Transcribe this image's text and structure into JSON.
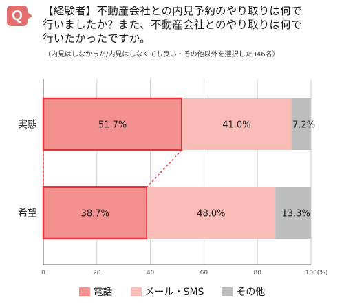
{
  "header": {
    "badge": "Q",
    "title_lines": [
      "【経験者】不動産会社との内見予約のやり取りは何で",
      "行いましたか？また、不動産会社とのやり取りは何で",
      "行いたかったですか。"
    ],
    "note": "（内見はしなかった/内見はしなくても良い・その他以外を選択した346名）"
  },
  "colors": {
    "phone": "#f2918f",
    "phone_border": "#e4343a",
    "mail": "#f8bbb5",
    "other": "#bdbdbd",
    "connector": "#e4343a",
    "badge": "#e36e6e"
  },
  "chart_data": {
    "type": "bar",
    "orientation": "horizontal",
    "stacked": true,
    "categories": [
      "実態",
      "希望"
    ],
    "series": [
      {
        "name": "電話",
        "values": [
          51.7,
          38.7
        ]
      },
      {
        "name": "メール・SMS",
        "values": [
          41.0,
          48.0
        ]
      },
      {
        "name": "その他",
        "values": [
          7.2,
          13.3
        ]
      }
    ],
    "value_labels": [
      [
        "51.7%",
        "41.0%",
        "7.2%"
      ],
      [
        "38.7%",
        "48.0%",
        "13.3%"
      ]
    ],
    "xlim": [
      0,
      100
    ],
    "xticks": [
      "0",
      "20",
      "40",
      "60",
      "80",
      "100(%)"
    ],
    "grid": "vertical",
    "legend_position": "bottom-center",
    "highlight_series": "電話",
    "connector_between_highlight": true
  },
  "legend": {
    "items": [
      {
        "label": "電話",
        "color": "#f2918f"
      },
      {
        "label": "メール・SMS",
        "color": "#f8bbb5"
      },
      {
        "label": "その他",
        "color": "#bdbdbd"
      }
    ]
  }
}
